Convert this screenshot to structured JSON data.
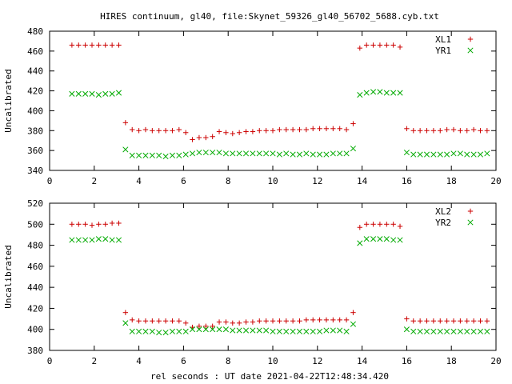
{
  "title": "HIRES continuum, gl40, file:Skynet_59326_gl40_56702_5688.cyb.txt",
  "xlabel": "rel seconds : UT date 2021-04-22T12:48:34.420",
  "colors": {
    "red": "#cc0000",
    "green": "#00aa00",
    "axis": "#000000"
  },
  "chart_data": [
    {
      "type": "scatter",
      "ylabel": "Uncalibrated",
      "xlim": [
        0,
        20
      ],
      "ylim": [
        340,
        480
      ],
      "xticks": [
        0,
        2,
        4,
        6,
        8,
        10,
        12,
        14,
        16,
        18,
        20
      ],
      "yticks": [
        340,
        360,
        380,
        400,
        420,
        440,
        460,
        480
      ],
      "legend_position": "top-right",
      "series": [
        {
          "name": "XL1",
          "marker": "+",
          "color": "#cc0000",
          "x": [
            1.0,
            1.3,
            1.6,
            1.9,
            2.2,
            2.5,
            2.8,
            3.1,
            3.4,
            3.7,
            4.0,
            4.3,
            4.6,
            4.9,
            5.2,
            5.5,
            5.8,
            6.1,
            6.4,
            6.7,
            7.0,
            7.3,
            7.6,
            7.9,
            8.2,
            8.5,
            8.8,
            9.1,
            9.4,
            9.7,
            10.0,
            10.3,
            10.6,
            10.9,
            11.2,
            11.5,
            11.8,
            12.1,
            12.4,
            12.7,
            13.0,
            13.3,
            13.6,
            13.9,
            14.2,
            14.5,
            14.8,
            15.1,
            15.4,
            15.7,
            16.0,
            16.3,
            16.6,
            16.9,
            17.2,
            17.5,
            17.8,
            18.1,
            18.4,
            18.7,
            19.0,
            19.3,
            19.6
          ],
          "y": [
            466,
            466,
            466,
            466,
            466,
            466,
            466,
            466,
            388,
            381,
            380,
            381,
            380,
            380,
            380,
            380,
            381,
            378,
            371,
            373,
            373,
            374,
            379,
            378,
            377,
            378,
            379,
            379,
            380,
            380,
            380,
            381,
            381,
            381,
            381,
            381,
            382,
            382,
            382,
            382,
            382,
            381,
            387,
            463,
            466,
            466,
            466,
            466,
            466,
            464,
            382,
            380,
            380,
            380,
            380,
            380,
            381,
            381,
            380,
            380,
            381,
            380,
            380
          ]
        },
        {
          "name": "YR1",
          "marker": "x",
          "color": "#00aa00",
          "x": [
            1.0,
            1.3,
            1.6,
            1.9,
            2.2,
            2.5,
            2.8,
            3.1,
            3.4,
            3.7,
            4.0,
            4.3,
            4.6,
            4.9,
            5.2,
            5.5,
            5.8,
            6.1,
            6.4,
            6.7,
            7.0,
            7.3,
            7.6,
            7.9,
            8.2,
            8.5,
            8.8,
            9.1,
            9.4,
            9.7,
            10.0,
            10.3,
            10.6,
            10.9,
            11.2,
            11.5,
            11.8,
            12.1,
            12.4,
            12.7,
            13.0,
            13.3,
            13.6,
            13.9,
            14.2,
            14.5,
            14.8,
            15.1,
            15.4,
            15.7,
            16.0,
            16.3,
            16.6,
            16.9,
            17.2,
            17.5,
            17.8,
            18.1,
            18.4,
            18.7,
            19.0,
            19.3,
            19.6
          ],
          "y": [
            417,
            417,
            417,
            417,
            416,
            417,
            417,
            418,
            361,
            355,
            355,
            355,
            355,
            355,
            354,
            355,
            355,
            356,
            357,
            358,
            358,
            358,
            358,
            357,
            357,
            357,
            357,
            357,
            357,
            357,
            357,
            356,
            357,
            356,
            356,
            357,
            356,
            356,
            356,
            357,
            357,
            357,
            362,
            416,
            418,
            419,
            419,
            418,
            418,
            418,
            358,
            356,
            356,
            356,
            356,
            356,
            356,
            357,
            357,
            356,
            356,
            356,
            357
          ]
        }
      ]
    },
    {
      "type": "scatter",
      "ylabel": "Uncalibrated",
      "xlim": [
        0,
        20
      ],
      "ylim": [
        380,
        520
      ],
      "xticks": [
        0,
        2,
        4,
        6,
        8,
        10,
        12,
        14,
        16,
        18,
        20
      ],
      "yticks": [
        380,
        400,
        420,
        440,
        460,
        480,
        500,
        520
      ],
      "legend_position": "top-right",
      "series": [
        {
          "name": "XL2",
          "marker": "+",
          "color": "#cc0000",
          "x": [
            1.0,
            1.3,
            1.6,
            1.9,
            2.2,
            2.5,
            2.8,
            3.1,
            3.4,
            3.7,
            4.0,
            4.3,
            4.6,
            4.9,
            5.2,
            5.5,
            5.8,
            6.1,
            6.4,
            6.7,
            7.0,
            7.3,
            7.6,
            7.9,
            8.2,
            8.5,
            8.8,
            9.1,
            9.4,
            9.7,
            10.0,
            10.3,
            10.6,
            10.9,
            11.2,
            11.5,
            11.8,
            12.1,
            12.4,
            12.7,
            13.0,
            13.3,
            13.6,
            13.9,
            14.2,
            14.5,
            14.8,
            15.1,
            15.4,
            15.7,
            16.0,
            16.3,
            16.6,
            16.9,
            17.2,
            17.5,
            17.8,
            18.1,
            18.4,
            18.7,
            19.0,
            19.3,
            19.6
          ],
          "y": [
            500,
            500,
            500,
            499,
            500,
            500,
            501,
            501,
            416,
            409,
            408,
            408,
            408,
            408,
            408,
            408,
            408,
            406,
            402,
            403,
            403,
            403,
            407,
            407,
            406,
            406,
            407,
            407,
            408,
            408,
            408,
            408,
            408,
            408,
            408,
            409,
            409,
            409,
            409,
            409,
            409,
            409,
            416,
            497,
            500,
            500,
            500,
            500,
            500,
            498,
            410,
            408,
            408,
            408,
            408,
            408,
            408,
            408,
            408,
            408,
            408,
            408,
            408
          ]
        },
        {
          "name": "YR2",
          "marker": "x",
          "color": "#00aa00",
          "x": [
            1.0,
            1.3,
            1.6,
            1.9,
            2.2,
            2.5,
            2.8,
            3.1,
            3.4,
            3.7,
            4.0,
            4.3,
            4.6,
            4.9,
            5.2,
            5.5,
            5.8,
            6.1,
            6.4,
            6.7,
            7.0,
            7.3,
            7.6,
            7.9,
            8.2,
            8.5,
            8.8,
            9.1,
            9.4,
            9.7,
            10.0,
            10.3,
            10.6,
            10.9,
            11.2,
            11.5,
            11.8,
            12.1,
            12.4,
            12.7,
            13.0,
            13.3,
            13.6,
            13.9,
            14.2,
            14.5,
            14.8,
            15.1,
            15.4,
            15.7,
            16.0,
            16.3,
            16.6,
            16.9,
            17.2,
            17.5,
            17.8,
            18.1,
            18.4,
            18.7,
            19.0,
            19.3,
            19.6
          ],
          "y": [
            485,
            485,
            485,
            485,
            486,
            486,
            485,
            485,
            406,
            398,
            398,
            398,
            398,
            397,
            397,
            398,
            398,
            398,
            400,
            400,
            400,
            400,
            400,
            400,
            399,
            399,
            399,
            399,
            399,
            399,
            398,
            398,
            398,
            398,
            398,
            398,
            398,
            398,
            399,
            399,
            399,
            398,
            405,
            482,
            486,
            486,
            486,
            486,
            485,
            485,
            400,
            398,
            398,
            398,
            398,
            398,
            398,
            398,
            398,
            398,
            398,
            398,
            398
          ]
        }
      ]
    }
  ]
}
